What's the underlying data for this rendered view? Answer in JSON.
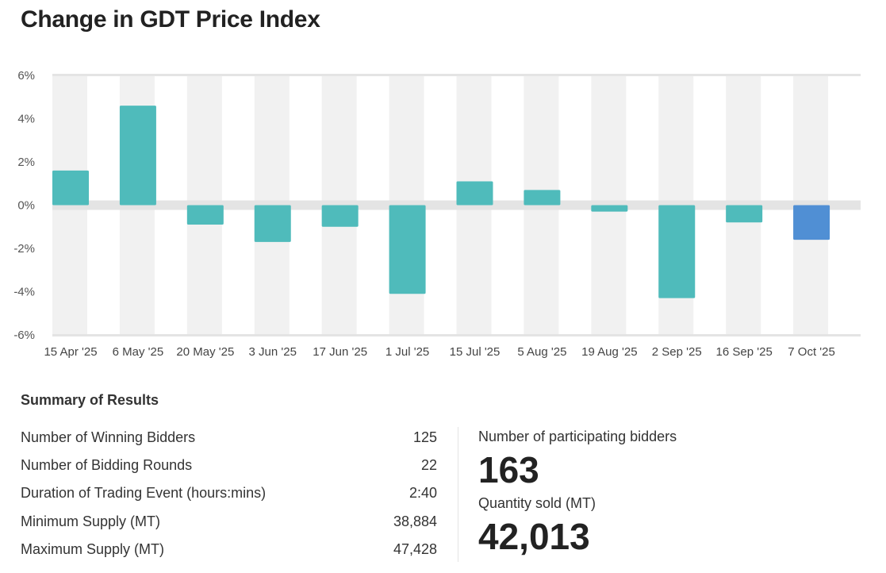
{
  "title": "Change in GDT Price Index",
  "chart_data": {
    "type": "bar",
    "title": "Change in GDT Price Index",
    "xlabel": "",
    "ylabel": "",
    "ylim": [
      -6,
      6
    ],
    "yticks": [
      "6%",
      "4%",
      "2%",
      "0%",
      "-2%",
      "-4%",
      "-6%"
    ],
    "ytick_values": [
      6,
      4,
      2,
      0,
      -2,
      -4,
      -6
    ],
    "categories": [
      "15 Apr '25",
      "6 May '25",
      "20 May '25",
      "3 Jun '25",
      "17 Jun '25",
      "1 Jul '25",
      "15 Jul '25",
      "5 Aug '25",
      "19 Aug '25",
      "2 Sep '25",
      "16 Sep '25",
      "7 Oct '25"
    ],
    "values": [
      1.6,
      4.6,
      -0.9,
      -1.7,
      -1.0,
      -4.1,
      1.1,
      0.7,
      -0.3,
      -4.3,
      -0.8,
      -1.6
    ],
    "colors": {
      "default": "#4fbbbb",
      "highlight": "#508fd4",
      "stripe": "#f1f1f1",
      "zero_band": "#e4e4e4"
    },
    "highlight_index": 11,
    "grid": false,
    "legend": "none"
  },
  "summary": {
    "heading": "Summary of Results",
    "rows": [
      {
        "label": "Number of Winning Bidders",
        "value": "125"
      },
      {
        "label": "Number of Bidding Rounds",
        "value": "22"
      },
      {
        "label": "Duration of Trading Event (hours:mins)",
        "value": "2:40"
      },
      {
        "label": "Minimum Supply (MT)",
        "value": "38,884"
      },
      {
        "label": "Maximum Supply (MT)",
        "value": "47,428"
      }
    ],
    "participating_label": "Number of participating bidders",
    "participating_value": "163",
    "quantity_label": "Quantity sold (MT)",
    "quantity_value": "42,013"
  }
}
